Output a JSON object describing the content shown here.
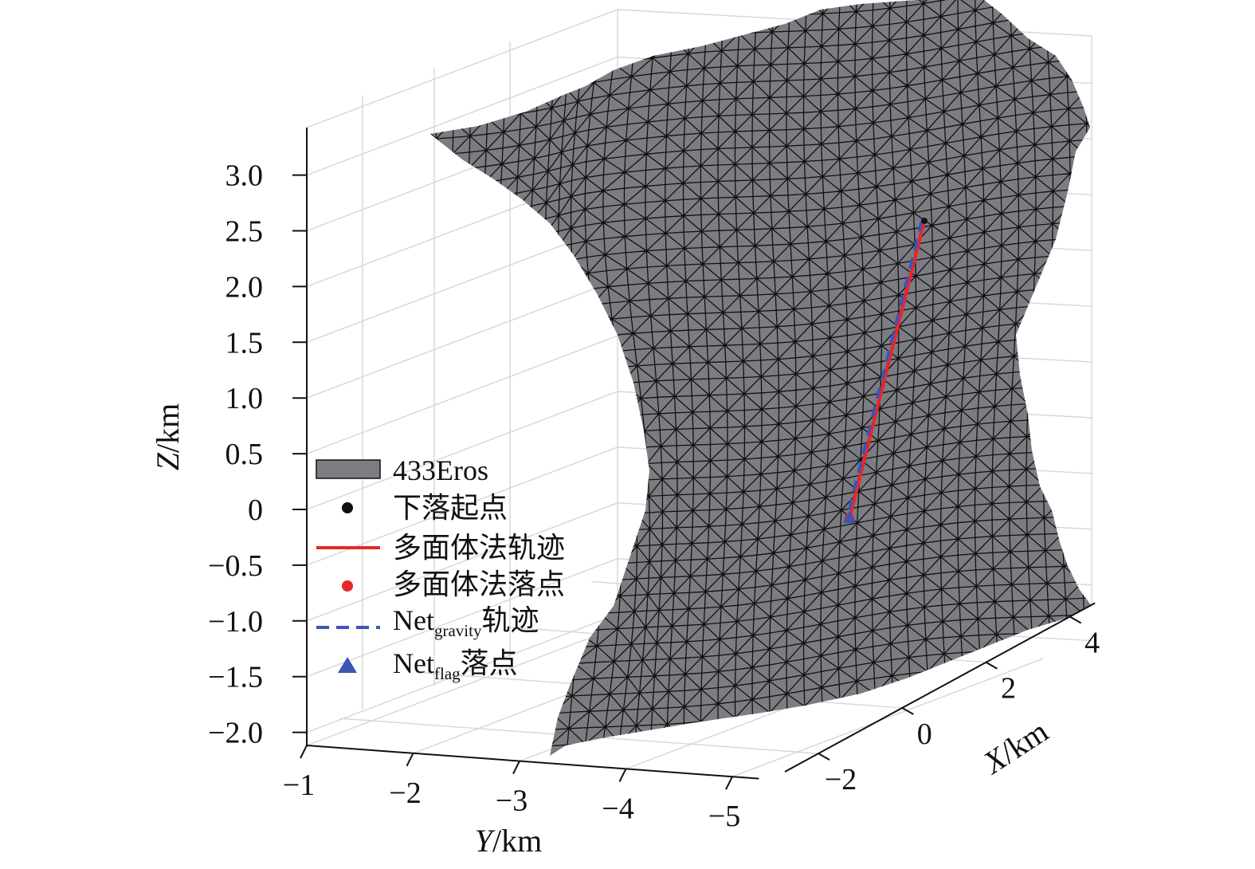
{
  "chart_data": {
    "type": "3d-surface",
    "z_axis": {
      "label_var": "Z",
      "label_unit": "/km",
      "ticks": [
        "3.0",
        "2.5",
        "2.0",
        "1.5",
        "1.0",
        "0.5",
        "0",
        "−0.5",
        "−1.0",
        "−1.5",
        "−2.0"
      ],
      "tick_values": [
        3.0,
        2.5,
        2.0,
        1.5,
        1.0,
        0.5,
        0,
        -0.5,
        -1.0,
        -1.5,
        -2.0
      ]
    },
    "y_axis": {
      "label_var": "Y",
      "label_unit": "/km",
      "ticks": [
        "−1",
        "−2",
        "−3",
        "−4",
        "−5"
      ],
      "tick_values": [
        -1,
        -2,
        -3,
        -4,
        -5
      ]
    },
    "x_axis": {
      "label_var": "X",
      "label_unit": "/km",
      "ticks": [
        "−2",
        "0",
        "2",
        "4"
      ],
      "tick_values": [
        -2,
        0,
        2,
        4
      ]
    },
    "legend": {
      "placement": "left",
      "entries": [
        {
          "key": "surface",
          "text": "433Eros",
          "sub": "",
          "suffix": ""
        },
        {
          "key": "start",
          "text": "下落起点",
          "sub": "",
          "suffix": ""
        },
        {
          "key": "poly_traj",
          "text": "多面体法轨迹",
          "sub": "",
          "suffix": ""
        },
        {
          "key": "poly_land",
          "text": "多面体法落点",
          "sub": "",
          "suffix": ""
        },
        {
          "key": "net_traj",
          "text": "Net",
          "sub": "gravity",
          "suffix": "轨迹"
        },
        {
          "key": "net_land",
          "text": "Net",
          "sub": "flag",
          "suffix": "落点"
        }
      ]
    },
    "series": [
      {
        "name": "多面体法轨迹",
        "style": "solid",
        "color": "#e8262b"
      },
      {
        "name": "Net gravity 轨迹",
        "style": "dashed",
        "color": "#3a55b4"
      }
    ],
    "grid": true,
    "colors": {
      "surface": "#7c7d82",
      "mesh": "#111111",
      "red": "#e8262b",
      "blue": "#3a55b4",
      "start": "#111111",
      "grid": "#d6d6d6"
    }
  }
}
